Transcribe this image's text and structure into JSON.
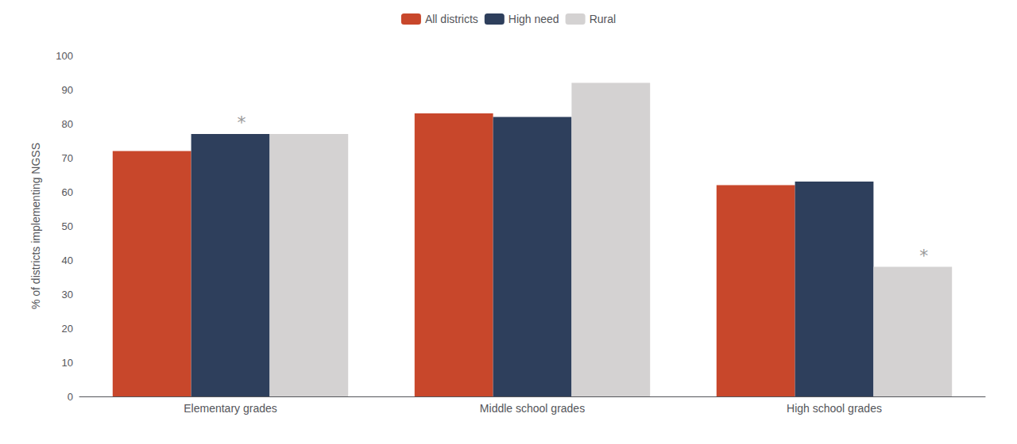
{
  "chart_data": {
    "type": "bar",
    "categories": [
      "Elementary grades",
      "Middle school grades",
      "High school grades"
    ],
    "series": [
      {
        "name": "All districts",
        "color": "#C8472B",
        "values": [
          72,
          83,
          62
        ]
      },
      {
        "name": "High need",
        "color": "#2E3F5C",
        "values": [
          77,
          82,
          63
        ]
      },
      {
        "name": "Rural",
        "color": "#D4D2D2",
        "values": [
          77,
          92,
          38
        ]
      }
    ],
    "ylabel": "% of districts implementing NGSS",
    "ylim": [
      0,
      100
    ],
    "yticks": [
      0,
      10,
      20,
      30,
      40,
      50,
      60,
      70,
      80,
      90,
      100
    ],
    "grid": false,
    "legend": "top",
    "annotations": [
      {
        "text": "*",
        "category": "Elementary grades",
        "series": "High need",
        "color": "#999999"
      },
      {
        "text": "*",
        "category": "High school grades",
        "series": "Rural",
        "color": "#999999"
      }
    ]
  }
}
